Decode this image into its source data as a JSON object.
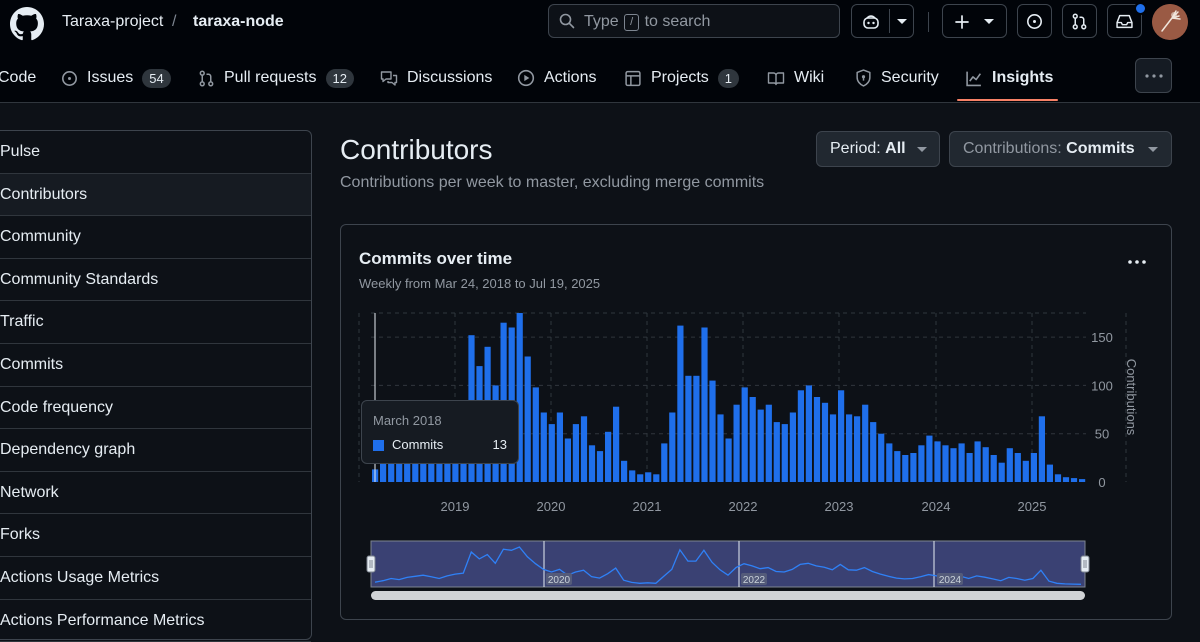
{
  "header": {
    "owner": "Taraxa-project",
    "separator": "/",
    "repo": "taraxa-node",
    "search": {
      "prefix": "Type",
      "key": "/",
      "suffix": "to search"
    }
  },
  "tabs": [
    {
      "label": "Code",
      "icon": "code-icon"
    },
    {
      "label": "Issues",
      "count": "54",
      "icon": "issue-opened-icon"
    },
    {
      "label": "Pull requests",
      "count": "12",
      "icon": "git-pull-request-icon"
    },
    {
      "label": "Discussions",
      "icon": "comment-discussion-icon"
    },
    {
      "label": "Actions",
      "icon": "play-icon"
    },
    {
      "label": "Projects",
      "count": "1",
      "icon": "table-icon"
    },
    {
      "label": "Wiki",
      "icon": "book-icon"
    },
    {
      "label": "Security",
      "icon": "shield-icon"
    },
    {
      "label": "Insights",
      "icon": "graph-icon",
      "active": true
    }
  ],
  "sidebar": {
    "items": [
      {
        "label": "Pulse"
      },
      {
        "label": "Contributors",
        "active": true
      },
      {
        "label": "Community"
      },
      {
        "label": "Community Standards"
      },
      {
        "label": "Traffic"
      },
      {
        "label": "Commits"
      },
      {
        "label": "Code frequency"
      },
      {
        "label": "Dependency graph"
      },
      {
        "label": "Network"
      },
      {
        "label": "Forks"
      },
      {
        "label": "Actions Usage Metrics"
      },
      {
        "label": "Actions Performance Metrics"
      }
    ]
  },
  "main": {
    "title": "Contributors",
    "subtitle": "Contributions per week to master, excluding merge commits",
    "period": {
      "label": "Period:",
      "value": "All"
    },
    "contributions": {
      "label": "Contributions:",
      "value": "Commits"
    }
  },
  "card": {
    "title": "Commits over time",
    "subtitle": "Weekly from Mar 24, 2018 to Jul 19, 2025"
  },
  "tooltip": {
    "title": "March 2018",
    "series": "Commits",
    "value": "13"
  },
  "colors": {
    "accent": "#1f6feb",
    "underline": "#f78166",
    "background": "#0d1117"
  },
  "chart_data": {
    "type": "bar",
    "title": "Commits over time",
    "ylabel": "Contributions",
    "ylim": [
      0,
      175
    ],
    "yticks": [
      0,
      50,
      100,
      150
    ],
    "xticks": [
      "2019",
      "2020",
      "2021",
      "2022",
      "2023",
      "2024",
      "2025"
    ],
    "navigator_labels": [
      "2020",
      "2022",
      "2024"
    ],
    "grid": true,
    "series": [
      {
        "name": "Commits",
        "color": "#1f6feb",
        "categories": [
          "2018-03",
          "2018-04",
          "2018-05",
          "2018-06",
          "2018-07",
          "2018-08",
          "2018-09",
          "2018-10",
          "2018-11",
          "2018-12",
          "2019-01",
          "2019-02",
          "2019-03",
          "2019-04",
          "2019-05",
          "2019-06",
          "2019-07",
          "2019-08",
          "2019-09",
          "2019-10",
          "2019-11",
          "2019-12",
          "2020-01",
          "2020-02",
          "2020-03",
          "2020-04",
          "2020-05",
          "2020-06",
          "2020-07",
          "2020-08",
          "2020-09",
          "2020-10",
          "2020-11",
          "2020-12",
          "2021-01",
          "2021-02",
          "2021-03",
          "2021-04",
          "2021-05",
          "2021-06",
          "2021-07",
          "2021-08",
          "2021-09",
          "2021-10",
          "2021-11",
          "2021-12",
          "2022-01",
          "2022-02",
          "2022-03",
          "2022-04",
          "2022-05",
          "2022-06",
          "2022-07",
          "2022-08",
          "2022-09",
          "2022-10",
          "2022-11",
          "2022-12",
          "2023-01",
          "2023-02",
          "2023-03",
          "2023-04",
          "2023-05",
          "2023-06",
          "2023-07",
          "2023-08",
          "2023-09",
          "2023-10",
          "2023-11",
          "2023-12",
          "2024-01",
          "2024-02",
          "2024-03",
          "2024-04",
          "2024-05",
          "2024-06",
          "2024-07",
          "2024-08",
          "2024-09",
          "2024-10",
          "2024-11",
          "2024-12",
          "2025-01",
          "2025-02",
          "2025-03",
          "2025-04",
          "2025-05",
          "2025-06",
          "2025-07"
        ],
        "values": [
          13,
          20,
          30,
          25,
          35,
          40,
          45,
          38,
          30,
          42,
          50,
          55,
          152,
          120,
          140,
          100,
          165,
          160,
          175,
          130,
          98,
          72,
          60,
          72,
          45,
          60,
          68,
          38,
          32,
          52,
          78,
          22,
          12,
          8,
          10,
          8,
          40,
          72,
          162,
          110,
          110,
          160,
          105,
          70,
          45,
          80,
          98,
          88,
          75,
          80,
          62,
          60,
          72,
          95,
          100,
          88,
          82,
          70,
          95,
          70,
          68,
          80,
          62,
          50,
          40,
          32,
          28,
          30,
          38,
          48,
          42,
          38,
          35,
          40,
          30,
          42,
          36,
          28,
          20,
          35,
          30,
          22,
          30,
          68,
          18,
          8,
          5,
          4,
          3
        ]
      }
    ]
  }
}
